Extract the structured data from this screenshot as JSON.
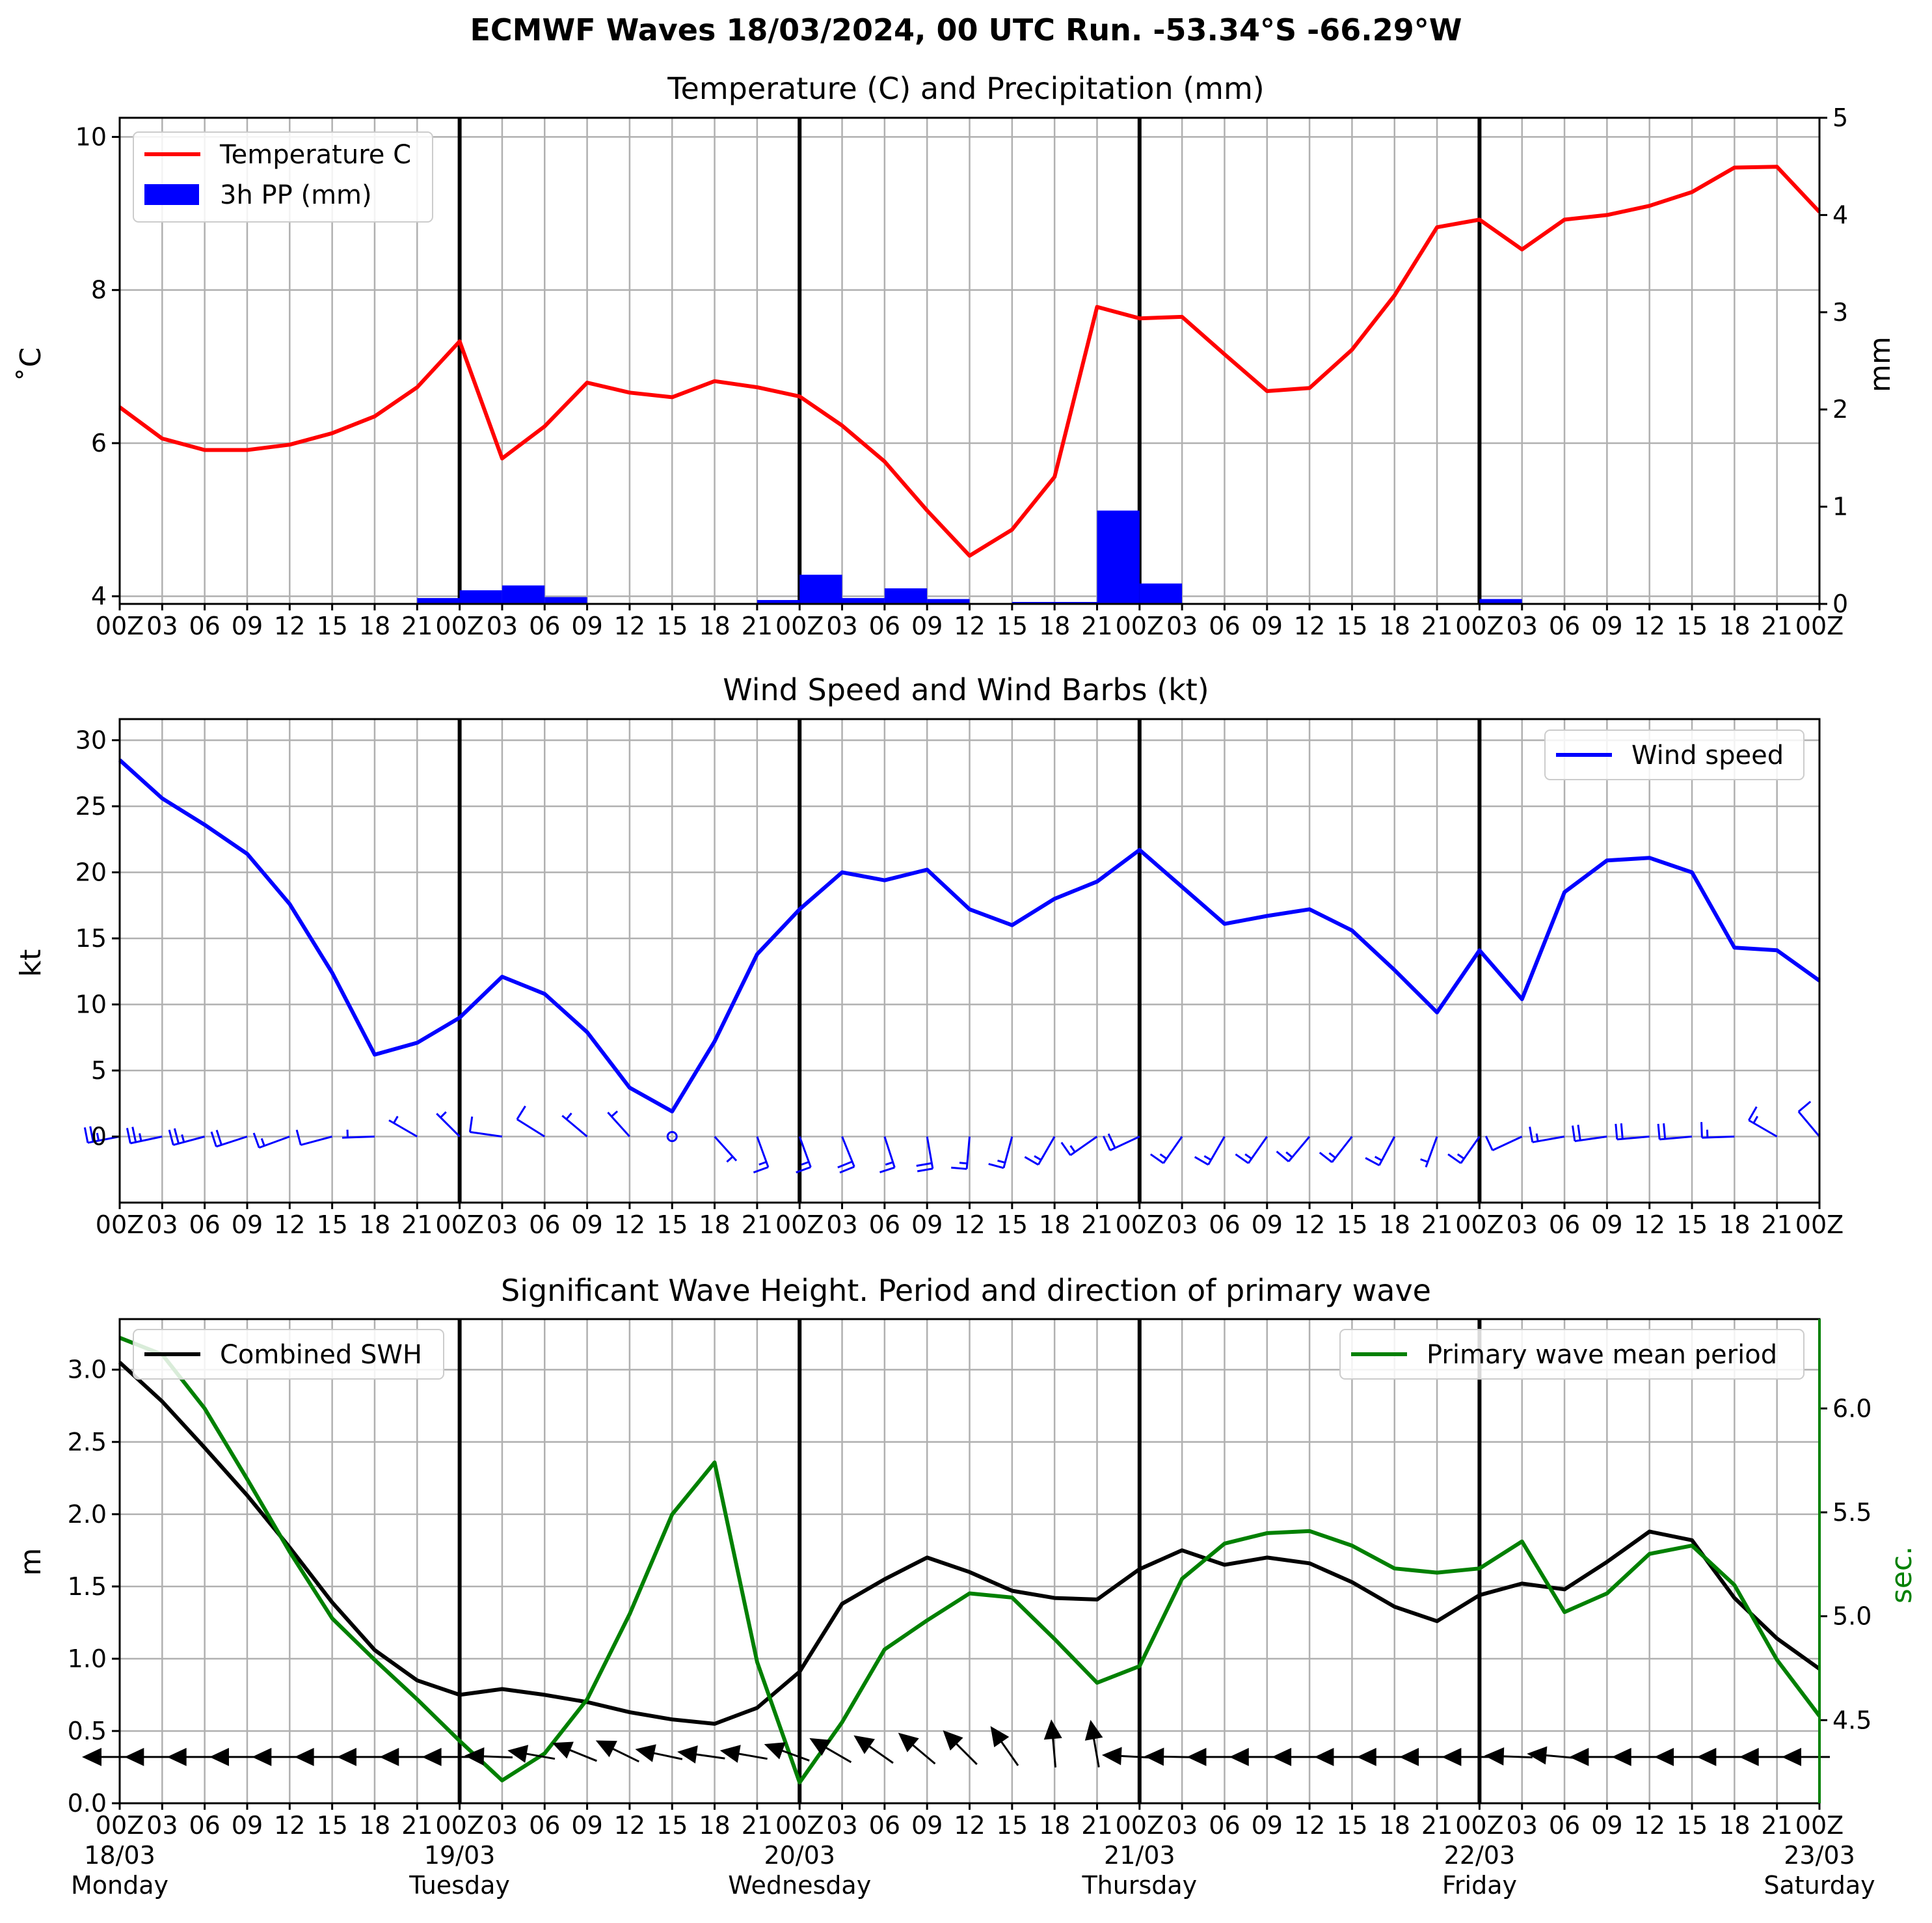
{
  "figure": {
    "suptitle": "ECMWF Waves 18/03/2024, 00 UTC Run. -53.34°S -66.29°W",
    "x_hour_labels": [
      "00Z",
      "03",
      "06",
      "09",
      "12",
      "15",
      "18",
      "21",
      "00Z",
      "03",
      "06",
      "09",
      "12",
      "15",
      "18",
      "21",
      "00Z",
      "03",
      "06",
      "09",
      "12",
      "15",
      "18",
      "21",
      "00Z",
      "03",
      "06",
      "09",
      "12",
      "15",
      "18",
      "21",
      "00Z",
      "03",
      "06",
      "09",
      "12",
      "15",
      "18",
      "21",
      "00Z"
    ],
    "bottom_date_labels": [
      {
        "date": "18/03",
        "day": "Monday"
      },
      {
        "date": "19/03",
        "day": "Tuesday"
      },
      {
        "date": "20/03",
        "day": "Wednesday"
      },
      {
        "date": "21/03",
        "day": "Thursday"
      },
      {
        "date": "22/03",
        "day": "Friday"
      },
      {
        "date": "23/03",
        "day": "Saturday"
      }
    ]
  },
  "chart_data": [
    {
      "type": "line",
      "title": "Temperature (C) and Precipitation (mm)",
      "x_step_hours": 3,
      "ylabel": "˚C",
      "ylim": [
        3.9,
        10.25
      ],
      "yticks": [
        4,
        6,
        8,
        10
      ],
      "y2label": "mm",
      "y2lim": [
        0,
        5
      ],
      "y2ticks": [
        0,
        1,
        2,
        3,
        4,
        5
      ],
      "grid": true,
      "legend": "top-left",
      "series": [
        {
          "name": "Temperature C",
          "type": "line",
          "color": "#ff0000",
          "values": [
            6.47,
            6.06,
            5.91,
            5.91,
            5.98,
            6.13,
            6.35,
            6.73,
            7.33,
            5.8,
            6.22,
            6.79,
            6.66,
            6.6,
            6.81,
            6.73,
            6.61,
            6.23,
            5.76,
            5.12,
            4.53,
            4.87,
            5.56,
            7.78,
            7.63,
            7.65,
            7.16,
            6.68,
            6.72,
            7.22,
            7.93,
            8.82,
            8.92,
            8.53,
            8.92,
            8.98,
            9.1,
            9.28,
            9.6,
            9.61,
            9.02
          ]
        },
        {
          "name": "3h PP (mm)",
          "type": "bar",
          "axis": "right",
          "color": "#0000ff",
          "values": [
            0,
            0,
            0,
            0,
            0,
            0,
            0,
            0.06,
            0.14,
            0.19,
            0.07,
            0,
            0,
            0,
            0,
            0.04,
            0.3,
            0.06,
            0.16,
            0.05,
            0,
            0.02,
            0.02,
            0.96,
            0.21,
            0,
            0,
            0,
            0,
            0,
            0,
            0.01,
            0.05,
            0,
            0,
            0,
            0,
            0,
            0,
            0
          ]
        }
      ]
    },
    {
      "type": "line",
      "title": "Wind Speed and Wind Barbs (kt)",
      "x_step_hours": 3,
      "ylabel": "kt",
      "ylim": [
        -5,
        31.6
      ],
      "yticks": [
        0,
        5,
        10,
        15,
        20,
        25,
        30
      ],
      "grid": true,
      "legend": "top-right",
      "series": [
        {
          "name": "Wind speed",
          "color": "#0000ff",
          "values": [
            28.5,
            25.6,
            23.6,
            21.4,
            17.6,
            12.4,
            6.2,
            7.1,
            9.0,
            12.1,
            10.8,
            7.9,
            3.7,
            1.9,
            7.2,
            13.8,
            17.2,
            20.0,
            19.4,
            20.2,
            17.2,
            16.0,
            18.0,
            19.3,
            21.7,
            18.9,
            16.1,
            16.7,
            17.2,
            15.6,
            12.6,
            9.4,
            14.1,
            10.4,
            18.5,
            20.9,
            21.1,
            20.0,
            14.3,
            14.1,
            11.8
          ]
        }
      ],
      "wind_barbs": {
        "color": "#0000ff",
        "direction_to_deg": [
          259,
          258,
          255,
          252,
          250,
          255,
          268,
          300,
          315,
          278,
          302,
          310,
          318,
          null,
          138,
          160,
          160,
          158,
          162,
          170,
          185,
          195,
          210,
          235,
          245,
          215,
          210,
          215,
          220,
          218,
          208,
          200,
          215,
          245,
          260,
          262,
          265,
          265,
          268,
          300,
          320
        ]
      }
    },
    {
      "type": "line",
      "title": "Significant Wave Height. Period and direction of primary wave",
      "x_step_hours": 3,
      "ylabel": "m",
      "ylim": [
        0,
        3.35
      ],
      "yticks": [
        0.0,
        0.5,
        1.0,
        1.5,
        2.0,
        2.5,
        3.0
      ],
      "y2label": "sec.",
      "y2lim": [
        4.1,
        6.43
      ],
      "y2ticks": [
        4.5,
        5.0,
        5.5,
        6.0
      ],
      "grid": true,
      "series": [
        {
          "name": "Combined SWH",
          "color": "#000000",
          "legend": "top-left",
          "values": [
            3.05,
            2.78,
            2.46,
            2.13,
            1.77,
            1.39,
            1.06,
            0.85,
            0.75,
            0.79,
            0.75,
            0.7,
            0.63,
            0.58,
            0.55,
            0.66,
            0.91,
            1.38,
            1.55,
            1.7,
            1.6,
            1.47,
            1.42,
            1.41,
            1.62,
            1.75,
            1.65,
            1.7,
            1.66,
            1.53,
            1.36,
            1.26,
            1.44,
            1.52,
            1.48,
            1.67,
            1.88,
            1.82,
            1.42,
            1.14,
            0.93
          ]
        },
        {
          "name": "Primary wave mean period",
          "color": "#008000",
          "axis": "right",
          "legend": "top-right",
          "values": [
            6.34,
            6.26,
            6.0,
            5.66,
            5.31,
            4.99,
            4.79,
            4.6,
            4.4,
            4.21,
            4.34,
            4.6,
            5.01,
            5.49,
            5.74,
            4.78,
            4.2,
            4.49,
            4.84,
            4.98,
            5.11,
            5.09,
            4.89,
            4.68,
            4.76,
            5.18,
            5.35,
            5.4,
            5.41,
            5.34,
            5.23,
            5.21,
            5.23,
            5.36,
            5.02,
            5.11,
            5.3,
            5.34,
            5.15,
            4.79,
            4.52
          ]
        }
      ],
      "wave_direction_arrows": {
        "color": "#000000",
        "direction_to_deg": [
          270,
          270,
          270,
          270,
          270,
          270,
          270,
          270,
          270,
          272,
          280,
          292,
          296,
          282,
          278,
          280,
          290,
          300,
          305,
          310,
          315,
          325,
          355,
          350,
          273,
          271,
          270,
          270,
          270,
          270,
          270,
          270,
          270,
          272,
          275,
          270,
          270,
          270,
          270,
          270,
          270
        ]
      }
    }
  ]
}
